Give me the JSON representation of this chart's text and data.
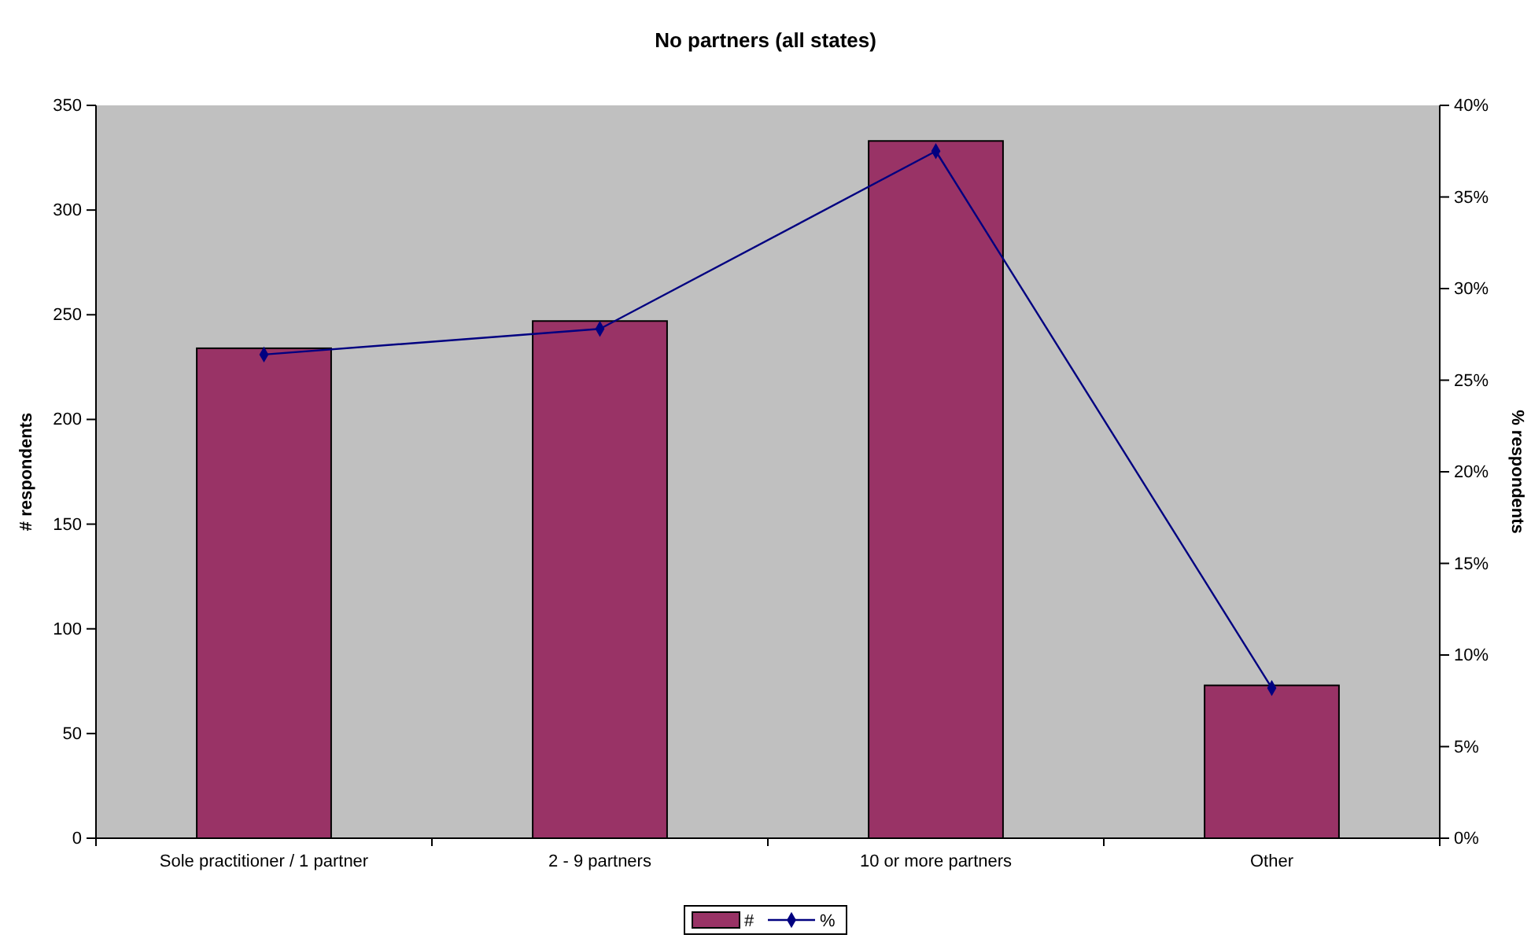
{
  "chart_data": {
    "type": "bar",
    "title": "No partners (all states)",
    "ylabel": "# respondents",
    "y2label": "% respondents",
    "categories": [
      "Sole practitioner / 1 partner",
      "2 - 9 partners",
      "10 or more partners",
      "Other"
    ],
    "series": [
      {
        "name": "#",
        "color": "#993366",
        "values": [
          234,
          247,
          333,
          73
        ]
      },
      {
        "name": "%",
        "type": "line",
        "axis": "y2",
        "color": "#000080",
        "values": [
          26.4,
          27.8,
          37.5,
          8.2
        ]
      }
    ],
    "ylim": [
      0,
      350
    ],
    "yticks": [
      0,
      50,
      100,
      150,
      200,
      250,
      300,
      350
    ],
    "y2lim": [
      0,
      40
    ],
    "y2ticks": [
      {
        "value": 0,
        "label": "0%"
      },
      {
        "value": 5,
        "label": "5%"
      },
      {
        "value": 10,
        "label": "10%"
      },
      {
        "value": 15,
        "label": "15%"
      },
      {
        "value": 20,
        "label": "20%"
      },
      {
        "value": 25,
        "label": "25%"
      },
      {
        "value": 30,
        "label": "30%"
      },
      {
        "value": 35,
        "label": "35%"
      },
      {
        "value": 40,
        "label": "40%"
      }
    ],
    "marker": "diamond",
    "legend": "bottom",
    "grid": false
  }
}
